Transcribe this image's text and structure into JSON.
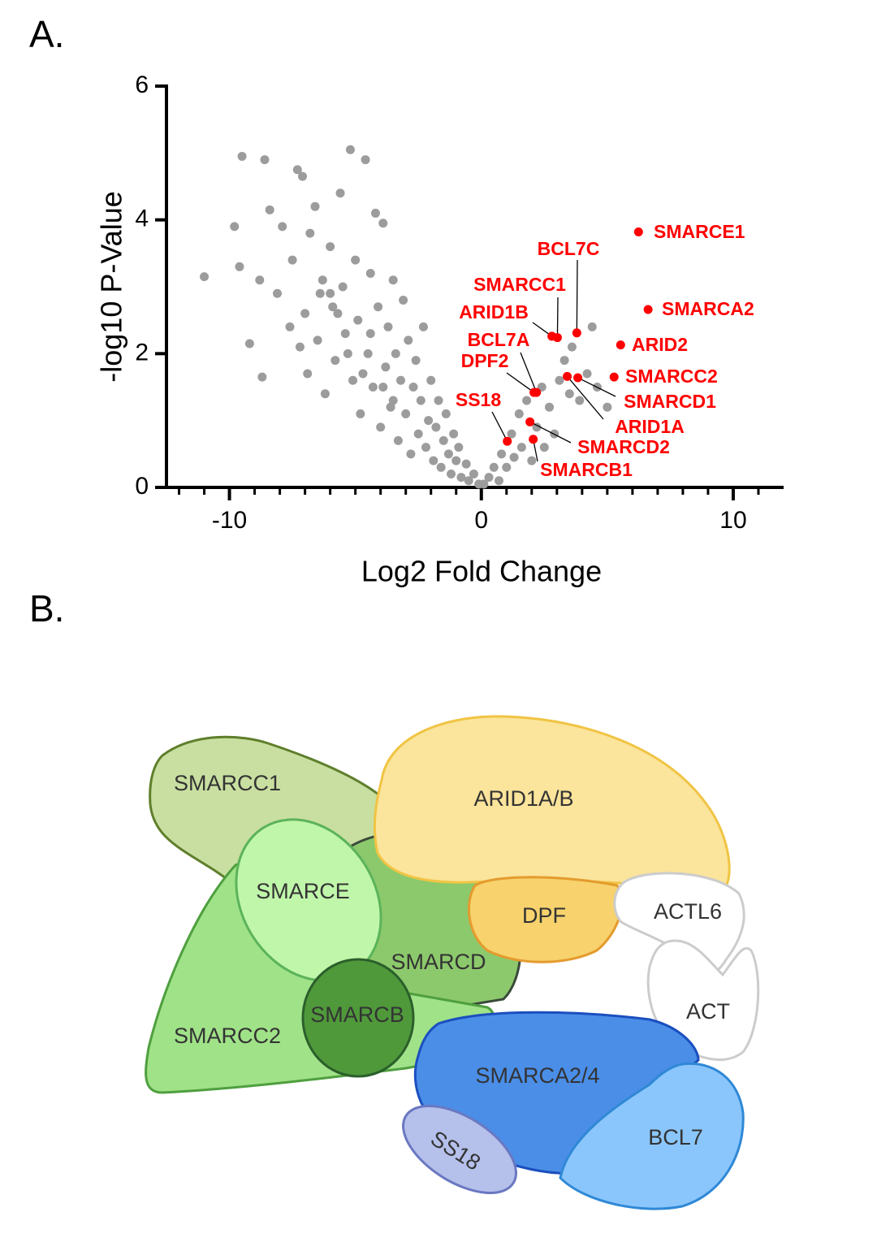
{
  "panel_labels": [
    "A.",
    "B."
  ],
  "chart_data": {
    "type": "scatter",
    "x_label": "Log2 Fold Change",
    "y_label": "-log10 P-Value",
    "xlim": [
      -12.5,
      12
    ],
    "ylim": [
      0,
      6
    ],
    "xticks": [
      -10,
      0,
      10
    ],
    "yticks": [
      0,
      2,
      4,
      6
    ],
    "xminorticks": [
      -12,
      -11,
      -9,
      -8,
      -7,
      -6,
      -5,
      -4,
      -3,
      -2,
      -1,
      1,
      2,
      3,
      4,
      5,
      6,
      7,
      8,
      9,
      11
    ],
    "series": [
      {
        "color": "#9c9c9c",
        "x": [
          -11,
          -9.8,
          -9.6,
          -9.5,
          -9.2,
          -8.8,
          -8.6,
          -8.4,
          -8.7,
          -8.1,
          -7.9,
          -7.6,
          -7.3,
          -7.1,
          -7.5,
          -7.0,
          -6.8,
          -6.6,
          -6.5,
          -6.3,
          -6.2,
          -6.0,
          -5.9,
          -5.8,
          -5.6,
          -5.5,
          -5.4,
          -5.2,
          -5.1,
          -5.0,
          -4.9,
          -4.8,
          -4.6,
          -4.5,
          -4.4,
          -4.3,
          -4.2,
          -4.1,
          -4.0,
          -3.9,
          -3.8,
          -3.7,
          -3.6,
          -3.5,
          -3.4,
          -3.3,
          -3.2,
          -3.1,
          -3.0,
          -2.9,
          -2.8,
          -2.7,
          -2.6,
          -2.5,
          -2.4,
          -2.3,
          -2.2,
          -2.1,
          -2.0,
          -1.9,
          -1.8,
          -1.7,
          -1.6,
          -1.5,
          -1.4,
          -1.3,
          -1.2,
          -1.1,
          -1.0,
          -0.9,
          -0.8,
          -0.6,
          -0.5,
          -0.3,
          -0.1,
          0.1,
          0.3,
          0.5,
          0.7,
          0.8,
          1.0,
          1.2,
          1.3,
          1.5,
          1.6,
          1.8,
          2.0,
          2.2,
          2.4,
          2.5,
          2.7,
          2.9,
          3.1,
          3.3,
          3.5,
          3.6,
          3.9,
          4.2,
          4.4,
          4.6,
          5.0,
          -6.9,
          -6.0,
          -5.3,
          -4.7,
          -4.4,
          -3.9,
          -3.5,
          -5.7,
          -6.4,
          -7.2
        ],
        "y": [
          3.15,
          3.9,
          3.3,
          4.95,
          2.15,
          3.1,
          4.9,
          4.15,
          1.65,
          2.9,
          3.9,
          2.4,
          4.75,
          4.65,
          3.4,
          2.6,
          3.8,
          4.2,
          2.2,
          3.1,
          1.4,
          3.6,
          2.7,
          1.9,
          4.4,
          3.0,
          2.3,
          5.05,
          1.6,
          3.4,
          2.5,
          1.1,
          4.9,
          2.0,
          3.2,
          1.5,
          4.1,
          2.7,
          0.9,
          3.95,
          1.8,
          2.4,
          1.2,
          3.1,
          2.0,
          0.7,
          1.6,
          2.8,
          1.1,
          2.2,
          0.5,
          1.5,
          1.9,
          0.8,
          1.3,
          2.4,
          0.6,
          1.0,
          1.6,
          0.4,
          0.9,
          1.3,
          0.3,
          0.7,
          1.1,
          0.5,
          0.2,
          0.8,
          0.4,
          0.6,
          0.15,
          0.35,
          0.1,
          0.2,
          0.05,
          0.05,
          0.15,
          0.3,
          0.1,
          0.5,
          0.3,
          0.8,
          0.45,
          1.1,
          0.6,
          1.3,
          0.4,
          0.9,
          1.5,
          0.6,
          1.2,
          0.8,
          1.6,
          1.9,
          1.4,
          2.1,
          1.3,
          1.7,
          2.4,
          1.5,
          1.2,
          1.7,
          2.9,
          2.0,
          1.7,
          2.3,
          1.5,
          1.3,
          2.6,
          2.9,
          2.1
        ]
      },
      {
        "color": "#ff0000",
        "labels": [
          "SMARCE1",
          "SMARCA2",
          "ARID2",
          "SMARCC2",
          "BCL7C",
          "SMARCC1",
          "ARID1B",
          "BCL7A",
          "DPF2",
          "SMARCD1",
          "ARID1A",
          "SS18",
          "SMARCD2",
          "SMARCB1"
        ],
        "x": [
          6.24,
          6.62,
          5.53,
          5.27,
          3.79,
          3.02,
          2.8,
          2.19,
          2.09,
          3.83,
          3.41,
          1.03,
          1.93,
          2.06
        ],
        "y": [
          3.82,
          2.66,
          2.13,
          1.65,
          2.31,
          2.24,
          2.26,
          1.42,
          1.42,
          1.64,
          1.66,
          0.69,
          0.98,
          0.72
        ]
      }
    ]
  },
  "diagram": {
    "nodes": [
      {
        "label": "SMARCC1"
      },
      {
        "label": "ARID1A/B"
      },
      {
        "label": "SMARCE"
      },
      {
        "label": "DPF"
      },
      {
        "label": "ACTL6"
      },
      {
        "label": "SMARCD"
      },
      {
        "label": "SMARCB"
      },
      {
        "label": "SMARCC2"
      },
      {
        "label": "ACT"
      },
      {
        "label": "SMARCA2/4"
      },
      {
        "label": "BCL7"
      },
      {
        "label": "SS18"
      }
    ]
  }
}
